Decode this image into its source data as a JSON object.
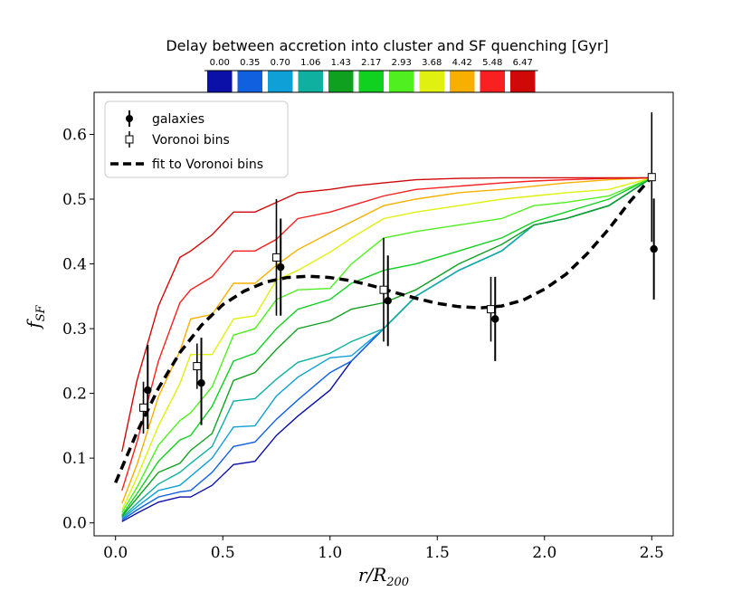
{
  "chart_data": {
    "type": "line",
    "title": "",
    "xlabel": "r/R200",
    "ylabel": "fSF",
    "xlim": [
      -0.1,
      2.6
    ],
    "ylim": [
      -0.02,
      0.665
    ],
    "xticks": [
      "0.0",
      "0.5",
      "1.0",
      "1.5",
      "2.0",
      "2.5"
    ],
    "xtick_values": [
      0.0,
      0.5,
      1.0,
      1.5,
      2.0,
      2.5
    ],
    "yticks": [
      "0.0",
      "0.1",
      "0.2",
      "0.3",
      "0.4",
      "0.5",
      "0.6"
    ],
    "ytick_values": [
      0.0,
      0.1,
      0.2,
      0.3,
      0.4,
      0.5,
      0.6
    ],
    "colorbar": {
      "title": "Delay between accretion into cluster and SF quenching [Gyr]",
      "labels": [
        "0.00",
        "0.35",
        "0.70",
        "1.06",
        "1.43",
        "2.17",
        "2.93",
        "3.68",
        "4.42",
        "5.48",
        "6.47"
      ],
      "colors": [
        "#0a10a8",
        "#1060e0",
        "#10a0d8",
        "#10b0a0",
        "#10a020",
        "#10d020",
        "#50f020",
        "#e0f010",
        "#f8b000",
        "#f82020",
        "#d00808"
      ]
    },
    "legend": {
      "position": "top-left",
      "entries": [
        "galaxies",
        "Voronoi bins",
        "fit to Voronoi bins"
      ]
    },
    "x_model": [
      0.03,
      0.1,
      0.2,
      0.3,
      0.35,
      0.45,
      0.55,
      0.65,
      0.75,
      0.85,
      1.0,
      1.1,
      1.25,
      1.4,
      1.6,
      1.8,
      1.95,
      2.1,
      2.3,
      2.5
    ],
    "series": [
      {
        "name": "0.00",
        "values": [
          0.002,
          0.015,
          0.032,
          0.04,
          0.04,
          0.058,
          0.09,
          0.095,
          0.135,
          0.165,
          0.205,
          0.25,
          0.3,
          0.35,
          0.39,
          0.42,
          0.46,
          0.47,
          0.49,
          0.533
        ]
      },
      {
        "name": "0.35",
        "values": [
          0.004,
          0.02,
          0.04,
          0.048,
          0.05,
          0.078,
          0.118,
          0.125,
          0.16,
          0.19,
          0.232,
          0.25,
          0.3,
          0.35,
          0.39,
          0.42,
          0.46,
          0.47,
          0.49,
          0.533
        ]
      },
      {
        "name": "0.70",
        "values": [
          0.006,
          0.025,
          0.05,
          0.058,
          0.072,
          0.1,
          0.148,
          0.15,
          0.196,
          0.225,
          0.255,
          0.258,
          0.3,
          0.35,
          0.39,
          0.42,
          0.46,
          0.47,
          0.49,
          0.533
        ]
      },
      {
        "name": "1.06",
        "values": [
          0.008,
          0.03,
          0.06,
          0.078,
          0.092,
          0.118,
          0.188,
          0.192,
          0.222,
          0.248,
          0.262,
          0.28,
          0.3,
          0.35,
          0.39,
          0.42,
          0.46,
          0.47,
          0.49,
          0.533
        ]
      },
      {
        "name": "1.43",
        "values": [
          0.01,
          0.038,
          0.078,
          0.092,
          0.112,
          0.138,
          0.22,
          0.232,
          0.268,
          0.3,
          0.312,
          0.33,
          0.34,
          0.36,
          0.4,
          0.43,
          0.46,
          0.47,
          0.49,
          0.533
        ]
      },
      {
        "name": "2.17",
        "values": [
          0.012,
          0.045,
          0.095,
          0.128,
          0.135,
          0.18,
          0.25,
          0.262,
          0.3,
          0.33,
          0.345,
          0.37,
          0.39,
          0.4,
          0.42,
          0.44,
          0.465,
          0.48,
          0.5,
          0.533
        ]
      },
      {
        "name": "2.93",
        "values": [
          0.016,
          0.055,
          0.12,
          0.158,
          0.17,
          0.21,
          0.29,
          0.3,
          0.345,
          0.36,
          0.362,
          0.4,
          0.44,
          0.45,
          0.46,
          0.47,
          0.49,
          0.495,
          0.505,
          0.533
        ]
      },
      {
        "name": "3.68",
        "values": [
          0.02,
          0.07,
          0.15,
          0.215,
          0.26,
          0.26,
          0.315,
          0.32,
          0.375,
          0.39,
          0.418,
          0.44,
          0.47,
          0.48,
          0.49,
          0.5,
          0.505,
          0.51,
          0.515,
          0.533
        ]
      },
      {
        "name": "4.42",
        "values": [
          0.03,
          0.09,
          0.195,
          0.265,
          0.315,
          0.322,
          0.37,
          0.37,
          0.398,
          0.422,
          0.448,
          0.465,
          0.49,
          0.5,
          0.51,
          0.515,
          0.52,
          0.525,
          0.53,
          0.533
        ]
      },
      {
        "name": "5.48",
        "values": [
          0.05,
          0.125,
          0.25,
          0.34,
          0.36,
          0.38,
          0.42,
          0.42,
          0.438,
          0.47,
          0.48,
          0.49,
          0.505,
          0.515,
          0.52,
          0.525,
          0.528,
          0.53,
          0.532,
          0.533
        ]
      },
      {
        "name": "6.47",
        "values": [
          0.11,
          0.22,
          0.335,
          0.41,
          0.42,
          0.445,
          0.48,
          0.48,
          0.495,
          0.51,
          0.515,
          0.52,
          0.525,
          0.53,
          0.532,
          0.533,
          0.533,
          0.533,
          0.533,
          0.533
        ]
      }
    ],
    "galaxies": [
      {
        "x": 0.15,
        "y": 0.205,
        "yerr": [
          0.06,
          0.07
        ]
      },
      {
        "x": 0.4,
        "y": 0.216,
        "yerr": [
          0.065,
          0.07
        ]
      },
      {
        "x": 0.77,
        "y": 0.395,
        "yerr": [
          0.075,
          0.075
        ]
      },
      {
        "x": 1.27,
        "y": 0.343,
        "yerr": [
          0.07,
          0.07
        ]
      },
      {
        "x": 1.77,
        "y": 0.315,
        "yerr": [
          0.065,
          0.065
        ]
      },
      {
        "x": 2.51,
        "y": 0.423,
        "yerr": [
          0.078,
          0.078
        ]
      }
    ],
    "voronoi_bins": [
      {
        "x": 0.13,
        "y": 0.178,
        "yerr": [
          0.04,
          0.04
        ]
      },
      {
        "x": 0.38,
        "y": 0.242,
        "yerr": [
          0.035,
          0.035
        ]
      },
      {
        "x": 0.75,
        "y": 0.41,
        "yerr": [
          0.09,
          0.09
        ]
      },
      {
        "x": 1.25,
        "y": 0.36,
        "yerr": [
          0.08,
          0.08
        ]
      },
      {
        "x": 1.75,
        "y": 0.33,
        "yerr": [
          0.05,
          0.05
        ]
      },
      {
        "x": 2.5,
        "y": 0.534,
        "yerr": [
          0.1,
          0.1
        ]
      }
    ],
    "fit": {
      "x": [
        0.0,
        0.1,
        0.2,
        0.3,
        0.4,
        0.5,
        0.6,
        0.7,
        0.8,
        0.9,
        1.0,
        1.1,
        1.2,
        1.3,
        1.4,
        1.5,
        1.6,
        1.7,
        1.8,
        1.9,
        2.0,
        2.1,
        2.2,
        2.3,
        2.4,
        2.5
      ],
      "y": [
        0.062,
        0.14,
        0.208,
        0.263,
        0.305,
        0.337,
        0.358,
        0.372,
        0.379,
        0.381,
        0.379,
        0.374,
        0.366,
        0.356,
        0.347,
        0.339,
        0.334,
        0.332,
        0.335,
        0.344,
        0.361,
        0.384,
        0.416,
        0.454,
        0.497,
        0.534
      ]
    }
  }
}
